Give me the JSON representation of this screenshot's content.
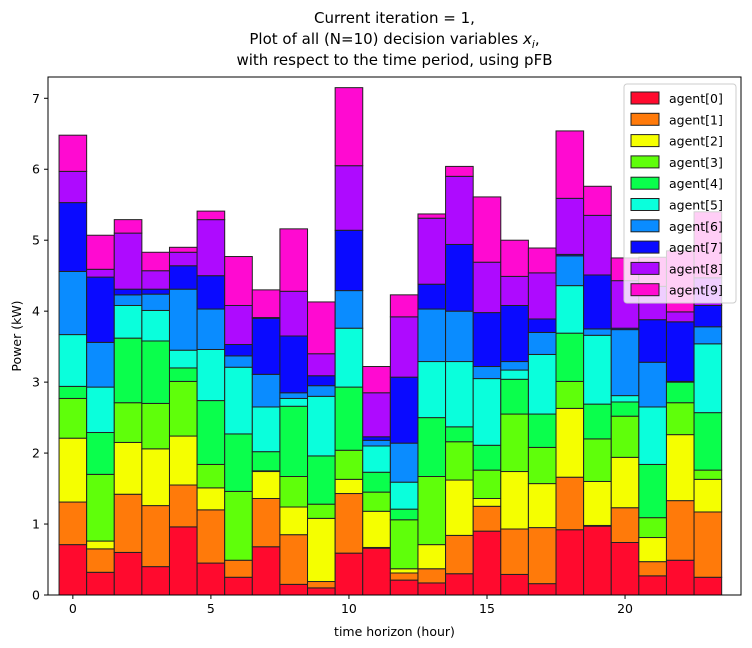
{
  "chart_data": {
    "type": "bar",
    "stacked": true,
    "title_lines": [
      "Current iteration = 1,",
      "Plot of all (N=10) decision variables x_i,",
      "with respect to the time period, using pFB"
    ],
    "xlabel": "time horizon (hour)",
    "ylabel": "Power (kW)",
    "xlim": [
      -0.9,
      24.2
    ],
    "ylim": [
      0,
      7.3
    ],
    "xticks": [
      0,
      5,
      10,
      15,
      20
    ],
    "yticks": [
      0,
      1,
      2,
      3,
      4,
      5,
      6,
      7
    ],
    "grid": false,
    "legend_position": "top-right",
    "x": [
      0,
      1,
      2,
      3,
      4,
      5,
      6,
      7,
      8,
      9,
      10,
      11,
      12,
      13,
      14,
      15,
      16,
      17,
      18,
      19,
      20,
      21,
      22,
      23
    ],
    "series": [
      {
        "name": "agent[0]",
        "color": "#ff0a2e",
        "values": [
          0.71,
          0.32,
          0.6,
          0.4,
          0.96,
          0.45,
          0.25,
          0.68,
          0.15,
          0.1,
          0.59,
          0.66,
          0.21,
          0.17,
          0.3,
          0.9,
          0.29,
          0.16,
          0.92,
          0.97,
          0.74,
          0.27,
          0.49,
          0.25
        ]
      },
      {
        "name": "agent[1]",
        "color": "#ff7a0a",
        "values": [
          0.6,
          0.33,
          0.82,
          0.86,
          0.59,
          0.75,
          0.24,
          0.68,
          0.7,
          0.09,
          0.84,
          0.01,
          0.1,
          0.2,
          0.54,
          0.35,
          0.64,
          0.79,
          0.74,
          0.01,
          0.49,
          0.2,
          0.84,
          0.92
        ]
      },
      {
        "name": "agent[2]",
        "color": "#f5ff00",
        "values": [
          0.9,
          0.11,
          0.73,
          0.8,
          0.69,
          0.31,
          0.0,
          0.38,
          0.39,
          0.89,
          0.2,
          0.51,
          0.06,
          0.34,
          0.78,
          0.11,
          0.81,
          0.62,
          0.97,
          0.62,
          0.71,
          0.34,
          0.93,
          0.46
        ]
      },
      {
        "name": "agent[3]",
        "color": "#5fff0a",
        "values": [
          0.56,
          0.94,
          0.56,
          0.64,
          0.77,
          0.33,
          0.97,
          0.01,
          0.43,
          0.2,
          0.41,
          0.27,
          0.69,
          0.96,
          0.54,
          0.4,
          0.81,
          0.51,
          0.38,
          0.6,
          0.58,
          0.28,
          0.45,
          0.13
        ]
      },
      {
        "name": "agent[4]",
        "color": "#0aff4c",
        "values": [
          0.17,
          0.59,
          0.91,
          0.88,
          0.19,
          0.9,
          0.81,
          0.27,
          0.99,
          0.68,
          0.89,
          0.28,
          0.15,
          0.83,
          0.21,
          0.35,
          0.49,
          0.47,
          0.68,
          0.49,
          0.2,
          0.75,
          0.29,
          0.81
        ]
      },
      {
        "name": "agent[5]",
        "color": "#0affdc",
        "values": [
          0.73,
          0.64,
          0.46,
          0.43,
          0.25,
          0.72,
          0.94,
          0.63,
          0.11,
          0.84,
          0.83,
          0.37,
          0.38,
          0.79,
          0.92,
          0.94,
          0.13,
          0.84,
          0.67,
          0.97,
          0.09,
          0.81,
          0.0,
          0.97
        ]
      },
      {
        "name": "agent[6]",
        "color": "#0a8cff",
        "values": [
          0.89,
          0.63,
          0.15,
          0.23,
          0.86,
          0.57,
          0.16,
          0.46,
          0.08,
          0.15,
          0.53,
          0.08,
          0.55,
          0.74,
          0.71,
          0.17,
          0.12,
          0.31,
          0.42,
          0.09,
          0.93,
          0.63,
          0.01,
          0.24
        ]
      },
      {
        "name": "agent[7]",
        "color": "#0a0aff",
        "values": [
          0.97,
          0.92,
          0.08,
          0.07,
          0.33,
          0.47,
          0.16,
          0.79,
          0.8,
          0.14,
          0.85,
          0.05,
          0.93,
          0.35,
          0.94,
          0.76,
          0.79,
          0.19,
          0.02,
          0.76,
          0.02,
          0.6,
          0.84,
          0.3
        ]
      },
      {
        "name": "agent[8]",
        "color": "#ae0aff",
        "values": [
          0.44,
          0.11,
          0.79,
          0.26,
          0.19,
          0.79,
          0.55,
          0.01,
          0.63,
          0.31,
          0.91,
          0.62,
          0.85,
          0.93,
          0.96,
          0.71,
          0.41,
          0.65,
          0.79,
          0.84,
          0.67,
          0.47,
          0.14,
          0.39
        ]
      },
      {
        "name": "agent[9]",
        "color": "#ff0ad1",
        "values": [
          0.51,
          0.48,
          0.19,
          0.26,
          0.07,
          0.12,
          0.69,
          0.39,
          0.88,
          0.73,
          1.1,
          0.37,
          0.31,
          0.06,
          0.14,
          0.92,
          0.51,
          0.35,
          0.95,
          0.41,
          0.32,
          0.41,
          0.86,
          0.93
        ]
      }
    ]
  }
}
